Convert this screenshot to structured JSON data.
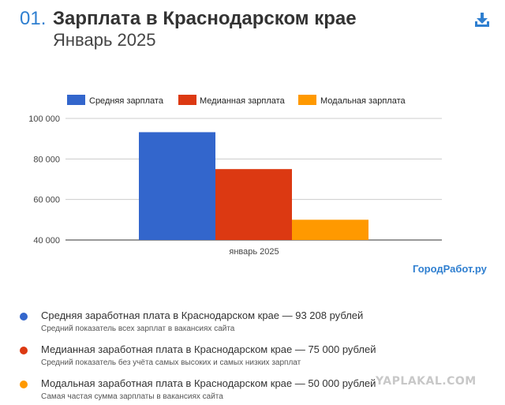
{
  "header": {
    "number": "01.",
    "title": "Зарплата в Краснодарском крае",
    "subtitle": "Январь 2025"
  },
  "icons": {
    "download": "download-icon"
  },
  "colors": {
    "accent": "#2f7fd0",
    "mean": "#3366cc",
    "median": "#dc3912",
    "mode": "#ff9900"
  },
  "chart_data": {
    "type": "bar",
    "categories": [
      "январь 2025"
    ],
    "series": [
      {
        "name": "Средняя зарплата",
        "values": [
          93208
        ]
      },
      {
        "name": "Медианная зарплата",
        "values": [
          75000
        ]
      },
      {
        "name": "Модальная зарплата",
        "values": [
          50000
        ]
      }
    ],
    "yticks": [
      "40 000",
      "60 000",
      "80 000",
      "100 000"
    ],
    "ylim": [
      40000,
      100000
    ],
    "grid": true,
    "legend": "top"
  },
  "site_label": "ГородРабот.ру",
  "notes": [
    {
      "title": "Средняя заработная плата в Краснодарском крае — 93 208 рублей",
      "desc": "Средний показатель всех зарплат в вакансиях сайта"
    },
    {
      "title": "Медианная заработная плата в Краснодарском крае — 75 000 рублей",
      "desc": "Средний показатель без учёта самых высоких и самых низких зарплат"
    },
    {
      "title": "Модальная заработная плата в Краснодарском крае — 50 000 рублей",
      "desc": "Самая частая сумма зарплаты в вакансиях сайта"
    }
  ],
  "watermark": "YAPLAKAL.COM"
}
